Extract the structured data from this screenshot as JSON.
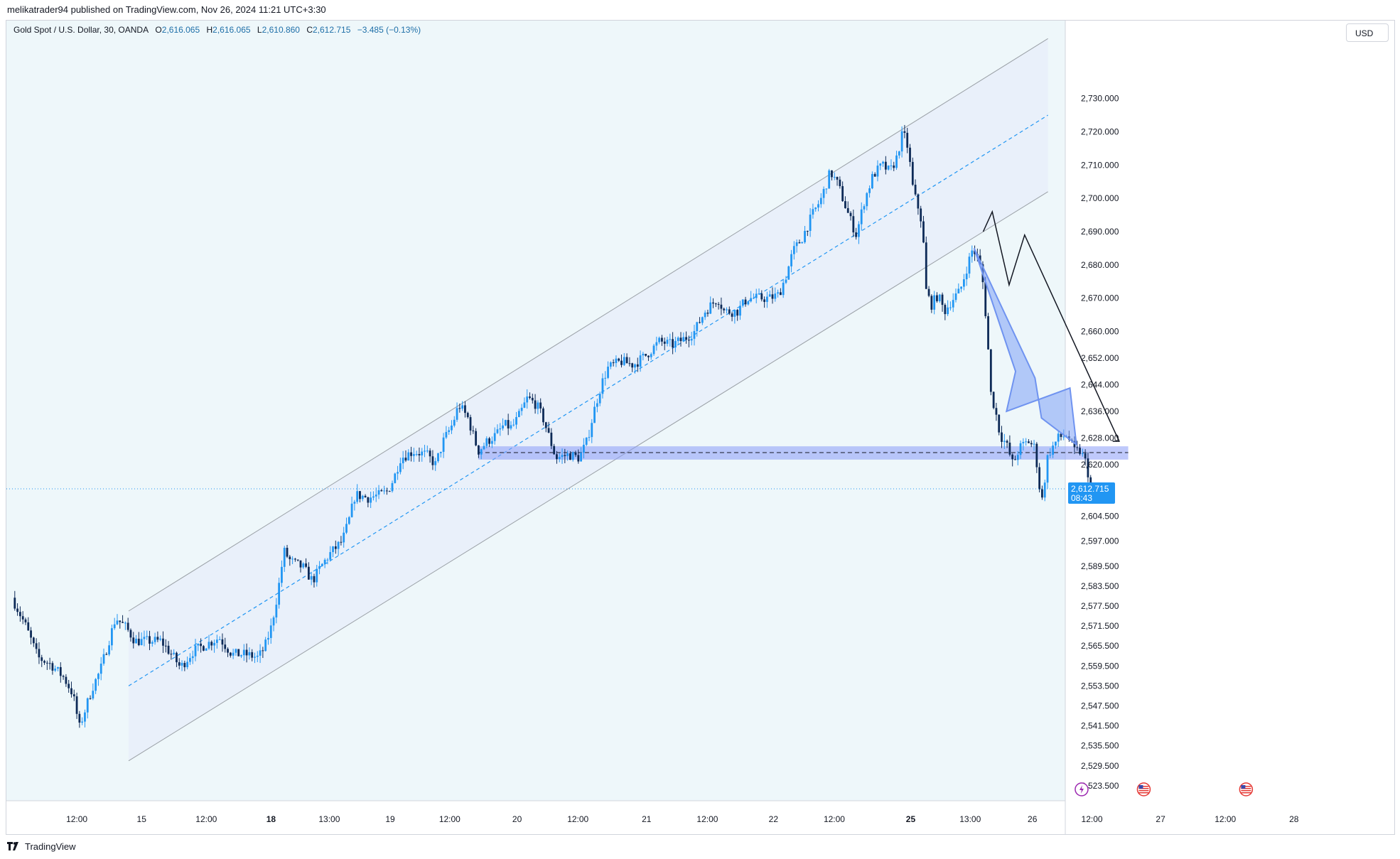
{
  "header": {
    "published_text": "melikatrader94 published on TradingView.com, Nov 26, 2024 11:21 UTC+3:30"
  },
  "legend": {
    "symbol": "Gold Spot / U.S. Dollar, 30, OANDA",
    "open_label": "O",
    "open": "2,616.065",
    "high_label": "H",
    "high": "2,616.065",
    "low_label": "L",
    "low": "2,610.860",
    "close_label": "C",
    "close": "2,612.715",
    "change": "−3.485 (−0.13%)"
  },
  "currency_button": "USD",
  "footer": {
    "brand": "TradingView"
  },
  "colors": {
    "up": "#2196f3",
    "down": "#0d2a57",
    "channel_fill": "#e8eef9",
    "zone": "#8a9cf7",
    "last_price_bg": "#2196f3",
    "chart_bg": "#eef7fa"
  },
  "chart_data": {
    "type": "candlestick",
    "title": "Gold Spot / U.S. Dollar, 30, OANDA",
    "ylim": [
      2519,
      2747
    ],
    "price_ticks": [
      {
        "label": "2,730.000",
        "value": 2730
      },
      {
        "label": "2,720.000",
        "value": 2720
      },
      {
        "label": "2,710.000",
        "value": 2710
      },
      {
        "label": "2,700.000",
        "value": 2700
      },
      {
        "label": "2,690.000",
        "value": 2690
      },
      {
        "label": "2,680.000",
        "value": 2680
      },
      {
        "label": "2,670.000",
        "value": 2670
      },
      {
        "label": "2,660.000",
        "value": 2660
      },
      {
        "label": "2,652.000",
        "value": 2652
      },
      {
        "label": "2,644.000",
        "value": 2644
      },
      {
        "label": "2,636.000",
        "value": 2636
      },
      {
        "label": "2,628.000",
        "value": 2628
      },
      {
        "label": "2,620.000",
        "value": 2620
      },
      {
        "label": "2,604.500",
        "value": 2604.5
      },
      {
        "label": "2,597.000",
        "value": 2597
      },
      {
        "label": "2,589.500",
        "value": 2589.5
      },
      {
        "label": "2,583.500",
        "value": 2583.5
      },
      {
        "label": "2,577.500",
        "value": 2577.5
      },
      {
        "label": "2,571.500",
        "value": 2571.5
      },
      {
        "label": "2,565.500",
        "value": 2565.5
      },
      {
        "label": "2,559.500",
        "value": 2559.5
      },
      {
        "label": "2,553.500",
        "value": 2553.5
      },
      {
        "label": "2,547.500",
        "value": 2547.5
      },
      {
        "label": "2,541.500",
        "value": 2541.5
      },
      {
        "label": "2,535.500",
        "value": 2535.5
      },
      {
        "label": "2,529.500",
        "value": 2529.5
      },
      {
        "label": "2,523.500",
        "value": 2523.5
      }
    ],
    "time_ticks": [
      {
        "label": "12:00",
        "t": 0.05,
        "bold": false
      },
      {
        "label": "15",
        "t": 0.1,
        "bold": false
      },
      {
        "label": "12:00",
        "t": 0.15,
        "bold": false
      },
      {
        "label": "18",
        "t": 0.2,
        "bold": true
      },
      {
        "label": "13:00",
        "t": 0.245,
        "bold": false
      },
      {
        "label": "19",
        "t": 0.292,
        "bold": false
      },
      {
        "label": "12:00",
        "t": 0.338,
        "bold": false
      },
      {
        "label": "20",
        "t": 0.39,
        "bold": false
      },
      {
        "label": "12:00",
        "t": 0.437,
        "bold": false
      },
      {
        "label": "21",
        "t": 0.49,
        "bold": false
      },
      {
        "label": "12:00",
        "t": 0.537,
        "bold": false
      },
      {
        "label": "22",
        "t": 0.588,
        "bold": false
      },
      {
        "label": "12:00",
        "t": 0.635,
        "bold": false
      },
      {
        "label": "25",
        "t": 0.694,
        "bold": true
      },
      {
        "label": "13:00",
        "t": 0.74,
        "bold": false
      },
      {
        "label": "26",
        "t": 0.788,
        "bold": false
      },
      {
        "label": "12:00",
        "t": 0.834,
        "bold": false
      },
      {
        "label": "27",
        "t": 0.887,
        "bold": false
      },
      {
        "label": "12:00",
        "t": 0.937,
        "bold": false
      },
      {
        "label": "28",
        "t": 0.99,
        "bold": false
      }
    ],
    "last_price": {
      "value": 2612.715,
      "label": "2,612.715",
      "countdown": "08:43"
    },
    "price_path": [
      [
        0.0,
        2580
      ],
      [
        0.01,
        2572
      ],
      [
        0.02,
        2562
      ],
      [
        0.03,
        2560
      ],
      [
        0.04,
        2556
      ],
      [
        0.047,
        2551
      ],
      [
        0.052,
        2541
      ],
      [
        0.057,
        2547
      ],
      [
        0.062,
        2553
      ],
      [
        0.068,
        2558
      ],
      [
        0.074,
        2566
      ],
      [
        0.08,
        2574
      ],
      [
        0.088,
        2571
      ],
      [
        0.095,
        2567
      ],
      [
        0.105,
        2567
      ],
      [
        0.115,
        2567
      ],
      [
        0.125,
        2562
      ],
      [
        0.13,
        2559
      ],
      [
        0.14,
        2564
      ],
      [
        0.15,
        2566
      ],
      [
        0.16,
        2568
      ],
      [
        0.17,
        2563
      ],
      [
        0.18,
        2563
      ],
      [
        0.19,
        2562
      ],
      [
        0.195,
        2565
      ],
      [
        0.2,
        2571
      ],
      [
        0.205,
        2581
      ],
      [
        0.21,
        2594
      ],
      [
        0.215,
        2591
      ],
      [
        0.225,
        2589
      ],
      [
        0.232,
        2585
      ],
      [
        0.238,
        2589
      ],
      [
        0.245,
        2593
      ],
      [
        0.255,
        2597
      ],
      [
        0.26,
        2603
      ],
      [
        0.265,
        2611
      ],
      [
        0.275,
        2610
      ],
      [
        0.285,
        2611
      ],
      [
        0.29,
        2612
      ],
      [
        0.295,
        2616
      ],
      [
        0.3,
        2622
      ],
      [
        0.31,
        2624
      ],
      [
        0.32,
        2623
      ],
      [
        0.327,
        2620
      ],
      [
        0.333,
        2627
      ],
      [
        0.34,
        2632
      ],
      [
        0.345,
        2638
      ],
      [
        0.352,
        2634
      ],
      [
        0.36,
        2624
      ],
      [
        0.367,
        2627
      ],
      [
        0.374,
        2629
      ],
      [
        0.38,
        2632
      ],
      [
        0.386,
        2631
      ],
      [
        0.392,
        2635
      ],
      [
        0.398,
        2640
      ],
      [
        0.405,
        2638
      ],
      [
        0.41,
        2634
      ],
      [
        0.415,
        2628
      ],
      [
        0.42,
        2622
      ],
      [
        0.43,
        2623
      ],
      [
        0.438,
        2622
      ],
      [
        0.444,
        2627
      ],
      [
        0.45,
        2637
      ],
      [
        0.455,
        2644
      ],
      [
        0.46,
        2649
      ],
      [
        0.47,
        2651
      ],
      [
        0.48,
        2650
      ],
      [
        0.49,
        2653
      ],
      [
        0.5,
        2657
      ],
      [
        0.51,
        2656
      ],
      [
        0.52,
        2658
      ],
      [
        0.527,
        2660
      ],
      [
        0.535,
        2666
      ],
      [
        0.545,
        2670
      ],
      [
        0.55,
        2666
      ],
      [
        0.56,
        2666
      ],
      [
        0.568,
        2670
      ],
      [
        0.575,
        2670
      ],
      [
        0.585,
        2670
      ],
      [
        0.592,
        2671
      ],
      [
        0.598,
        2677
      ],
      [
        0.603,
        2684
      ],
      [
        0.61,
        2688
      ],
      [
        0.618,
        2695
      ],
      [
        0.625,
        2700
      ],
      [
        0.632,
        2708
      ],
      [
        0.638,
        2704
      ],
      [
        0.645,
        2696
      ],
      [
        0.652,
        2689
      ],
      [
        0.658,
        2699
      ],
      [
        0.665,
        2707
      ],
      [
        0.672,
        2710
      ],
      [
        0.678,
        2708
      ],
      [
        0.683,
        2712
      ],
      [
        0.688,
        2720
      ],
      [
        0.692,
        2715
      ],
      [
        0.696,
        2702
      ],
      [
        0.7,
        2697
      ],
      [
        0.703,
        2692
      ],
      [
        0.706,
        2672
      ],
      [
        0.71,
        2668
      ],
      [
        0.715,
        2671
      ],
      [
        0.72,
        2666
      ],
      [
        0.727,
        2670
      ],
      [
        0.732,
        2672
      ],
      [
        0.738,
        2680
      ],
      [
        0.742,
        2685
      ],
      [
        0.747,
        2681
      ],
      [
        0.75,
        2674
      ],
      [
        0.753,
        2660
      ],
      [
        0.756,
        2641
      ],
      [
        0.759,
        2637
      ],
      [
        0.763,
        2629
      ],
      [
        0.768,
        2626
      ],
      [
        0.773,
        2620
      ],
      [
        0.778,
        2625
      ],
      [
        0.785,
        2627
      ],
      [
        0.79,
        2625
      ],
      [
        0.795,
        2608
      ],
      [
        0.8,
        2623
      ],
      [
        0.808,
        2628
      ],
      [
        0.815,
        2629
      ],
      [
        0.82,
        2624
      ],
      [
        0.825,
        2624
      ],
      [
        0.83,
        2620
      ],
      [
        0.833,
        2612
      ]
    ],
    "channel": {
      "upper": [
        [
          0.09,
          2576
        ],
        [
          0.8,
          2748
        ]
      ],
      "lower": [
        [
          0.09,
          2531
        ],
        [
          0.8,
          2702
        ]
      ],
      "x_end": 0.8
    },
    "zone": {
      "x": [
        0.36,
        0.862
      ],
      "y": [
        2621.5,
        2625.5
      ],
      "mid": 2623.6
    },
    "zigzag": [
      [
        0.75,
        2690
      ],
      [
        0.757,
        2696
      ],
      [
        0.77,
        2674
      ],
      [
        0.782,
        2689
      ],
      [
        0.855,
        2627
      ],
      [
        0.85,
        2627
      ],
      [
        0.853,
        2629
      ]
    ],
    "big_arrow": [
      [
        0.743,
        2685
      ],
      [
        0.775,
        2648
      ],
      [
        0.768,
        2636
      ],
      [
        0.817,
        2643
      ],
      [
        0.822,
        2626
      ],
      [
        0.795,
        2634
      ],
      [
        0.79,
        2646
      ]
    ],
    "session_icons": [
      {
        "name": "lightning-icon",
        "t": 0.826
      },
      {
        "name": "us-flag-icon",
        "t": 0.874
      },
      {
        "name": "us-flag-icon",
        "t": 0.953
      }
    ]
  }
}
